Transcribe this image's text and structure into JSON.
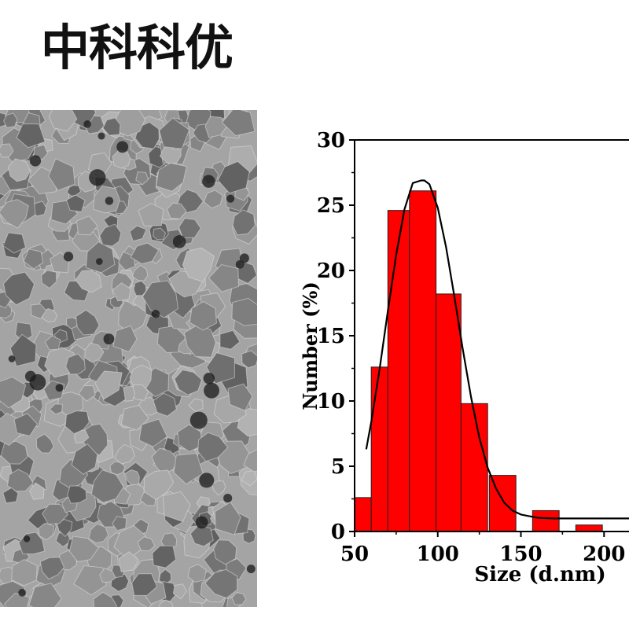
{
  "header": {
    "title": "中科科优"
  },
  "micrograph": {
    "icon": "tem-micrograph-image"
  },
  "chart_data": {
    "type": "bar",
    "xlabel": "Size (d.nm)",
    "ylabel": "Number (%)",
    "xlim": [
      50,
      215
    ],
    "ylim": [
      0,
      30
    ],
    "x_ticks": [
      50,
      100,
      150,
      200
    ],
    "y_ticks": [
      0,
      5,
      10,
      15,
      20,
      25,
      30
    ],
    "grid": false,
    "bar_color": "#ff0000",
    "bins": [
      {
        "x0": 50,
        "x1": 60,
        "value": 2.6
      },
      {
        "x0": 60,
        "x1": 70,
        "value": 12.6
      },
      {
        "x0": 70,
        "x1": 83,
        "value": 24.6
      },
      {
        "x0": 83,
        "x1": 99,
        "value": 26.1
      },
      {
        "x0": 99,
        "x1": 114,
        "value": 18.2
      },
      {
        "x0": 114,
        "x1": 130,
        "value": 9.8
      },
      {
        "x0": 131,
        "x1": 147,
        "value": 4.3
      },
      {
        "x0": 157,
        "x1": 173,
        "value": 1.6
      },
      {
        "x0": 183,
        "x1": 199,
        "value": 0.5
      }
    ],
    "fit": {
      "type": "gaussian",
      "color": "#000000",
      "x": [
        57,
        60,
        65,
        70,
        75,
        80,
        85,
        90,
        92,
        95,
        100,
        105,
        110,
        115,
        120,
        125,
        130,
        135,
        140,
        145,
        150,
        160,
        170,
        180,
        190,
        200,
        210,
        215
      ],
      "y": [
        6.3,
        8.4,
        12.4,
        16.9,
        21.2,
        24.7,
        26.7,
        26.9,
        26.9,
        26.6,
        24.8,
        21.8,
        18.0,
        14.0,
        10.3,
        7.2,
        4.9,
        3.3,
        2.2,
        1.6,
        1.3,
        1.05,
        1.0,
        1.0,
        1.0,
        1.0,
        1.0,
        1.0
      ]
    }
  }
}
